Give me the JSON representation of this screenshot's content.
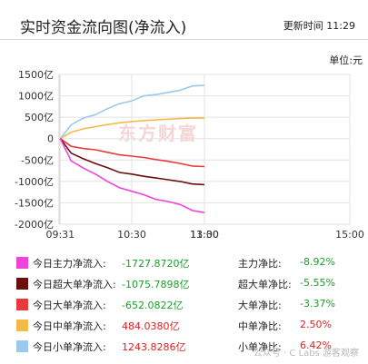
{
  "header": {
    "title": "实时资金流向图(净流入)",
    "update_label": "更新时间",
    "update_time": "11:29"
  },
  "unit": "单位:元",
  "watermark": {
    "logo": "东方财富",
    "text": "公众号 · C Labs 游客观察"
  },
  "colors": {
    "main": "#ee44dd",
    "super": "#6a0e0e",
    "large": "#e83a3a",
    "medium": "#f5b94a",
    "small": "#9cc8ee",
    "negative": "#1a9e2a",
    "positive": "#e02020",
    "grid": "#e2e2e2"
  },
  "legend": [
    {
      "label": "今日主力净流入:",
      "value": "-1727.8720亿",
      "ratio_label": "主力净比:",
      "ratio": "-8.92%",
      "color_key": "main",
      "sign": "neg"
    },
    {
      "label": "今日超大单净流入:",
      "value": "-1075.7898亿",
      "ratio_label": "超大单净比:",
      "ratio": "-5.55%",
      "color_key": "super",
      "sign": "neg"
    },
    {
      "label": "今日大单净流入:",
      "value": "-652.0822亿",
      "ratio_label": "大单净比:",
      "ratio": "-3.37%",
      "color_key": "large",
      "sign": "neg"
    },
    {
      "label": "今日中单净流入:",
      "value": "484.0380亿",
      "ratio_label": "中单净比:",
      "ratio": "2.50%",
      "color_key": "medium",
      "sign": "pos"
    },
    {
      "label": "今日小单净流入:",
      "value": "1243.8286亿",
      "ratio_label": "小单净比:",
      "ratio": "6.42%",
      "color_key": "small",
      "sign": "pos"
    }
  ],
  "chart_data": {
    "type": "line",
    "x": [
      "09:31",
      "09:40",
      "09:50",
      "10:00",
      "10:10",
      "10:20",
      "10:30",
      "10:40",
      "10:50",
      "11:00",
      "11:10",
      "11:20",
      "11:30"
    ],
    "x_ticks": [
      "09:31",
      "10:30",
      "11:30",
      "13:00",
      "15:00"
    ],
    "y_ticks": [
      "1500亿",
      "1000亿",
      "500亿",
      "0",
      "-500亿",
      "-1000亿",
      "-1500亿",
      "-2000亿"
    ],
    "y_tick_values": [
      1500,
      1000,
      500,
      0,
      -500,
      -1000,
      -1500,
      -2000
    ],
    "ylim": [
      -2000,
      1500
    ],
    "grid": true,
    "series": [
      {
        "key": "small",
        "values": [
          0,
          320,
          480,
          560,
          700,
          820,
          880,
          1000,
          1030,
          1080,
          1130,
          1230,
          1244
        ]
      },
      {
        "key": "medium",
        "values": [
          0,
          150,
          230,
          280,
          330,
          370,
          400,
          420,
          440,
          455,
          470,
          480,
          484
        ]
      },
      {
        "key": "large",
        "values": [
          0,
          -180,
          -230,
          -260,
          -320,
          -380,
          -410,
          -440,
          -490,
          -530,
          -580,
          -640,
          -652
        ]
      },
      {
        "key": "super",
        "values": [
          0,
          -340,
          -470,
          -580,
          -680,
          -790,
          -830,
          -880,
          -920,
          -960,
          -1000,
          -1060,
          -1076
        ]
      },
      {
        "key": "main",
        "values": [
          0,
          -520,
          -690,
          -830,
          -1000,
          -1150,
          -1230,
          -1310,
          -1420,
          -1470,
          -1540,
          -1680,
          -1728
        ]
      }
    ]
  }
}
